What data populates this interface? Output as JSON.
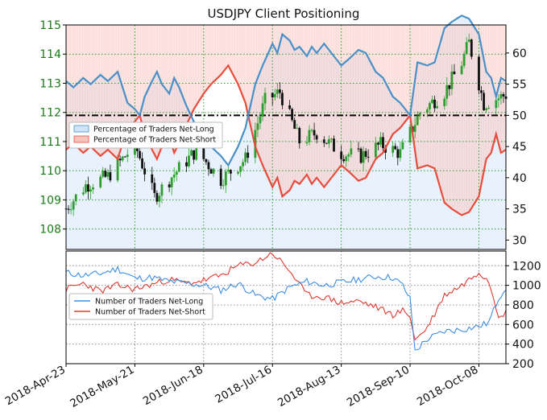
{
  "chart_data": {
    "type": "line",
    "title": "USDJPY Client Positioning",
    "dates": [
      "2018-Apr-23",
      "2018-May-21",
      "2018-Jun-18",
      "2018-Jul-16",
      "2018-Aug-13",
      "2018-Sep-10",
      "2018-Oct-08"
    ],
    "x_range": [
      "2018-04-23",
      "2018-10-19"
    ],
    "top_panel": {
      "price_axis": {
        "side": "left",
        "color": "#1a7a1a",
        "ylim": [
          107.3,
          115.0
        ],
        "ticks": [
          108,
          109,
          110,
          111,
          112,
          113,
          114,
          115
        ]
      },
      "percent_axis": {
        "side": "right",
        "ylim": [
          28.5,
          64.5
        ],
        "ticks": [
          30,
          35,
          40,
          45,
          50,
          55,
          60
        ]
      },
      "reference_line": {
        "value": 50,
        "style": "dash-dot",
        "color": "#000000"
      },
      "legend": {
        "position": "center-left",
        "items": [
          {
            "label": "Percentage of Traders Net-Long",
            "color": "#4a90c8",
            "fill": "#cfe4f7"
          },
          {
            "label": "Percentage of Traders Net-Short",
            "color": "#e74c3c",
            "fill": "#f7c3bd"
          }
        ]
      },
      "net_long_pct": {
        "x": [
          "2018-04-23",
          "2018-04-26",
          "2018-04-30",
          "2018-05-03",
          "2018-05-07",
          "2018-05-10",
          "2018-05-14",
          "2018-05-16",
          "2018-05-18",
          "2018-05-21",
          "2018-05-23",
          "2018-05-25",
          "2018-05-28",
          "2018-05-30",
          "2018-06-01",
          "2018-06-04",
          "2018-06-06",
          "2018-06-08",
          "2018-06-11",
          "2018-06-14",
          "2018-06-18",
          "2018-06-21",
          "2018-06-25",
          "2018-06-28",
          "2018-07-02",
          "2018-07-05",
          "2018-07-09",
          "2018-07-12",
          "2018-07-16",
          "2018-07-18",
          "2018-07-20",
          "2018-07-23",
          "2018-07-25",
          "2018-07-27",
          "2018-07-30",
          "2018-08-01",
          "2018-08-03",
          "2018-08-06",
          "2018-08-09",
          "2018-08-13",
          "2018-08-16",
          "2018-08-20",
          "2018-08-23",
          "2018-08-27",
          "2018-08-30",
          "2018-09-03",
          "2018-09-06",
          "2018-09-10",
          "2018-09-13",
          "2018-09-17",
          "2018-09-20",
          "2018-09-24",
          "2018-09-27",
          "2018-10-01",
          "2018-10-04",
          "2018-10-08",
          "2018-10-11",
          "2018-10-13",
          "2018-10-15",
          "2018-10-17",
          "2018-10-19"
        ],
        "y": [
          55.5,
          54.5,
          56,
          55,
          56.5,
          55.5,
          57,
          54.5,
          52,
          51,
          50,
          53,
          55.5,
          57,
          55,
          53.5,
          56,
          54.5,
          51.5,
          49,
          46.5,
          45,
          43.5,
          42,
          45,
          48,
          55,
          58,
          61.5,
          60,
          63,
          62,
          60.5,
          61,
          59.5,
          61,
          60,
          61.5,
          60,
          58,
          59,
          60.5,
          60,
          57,
          56,
          53,
          52,
          50,
          58.5,
          58,
          58.5,
          64,
          65,
          66,
          65.5,
          63,
          57,
          56,
          53,
          56,
          55.5
        ]
      },
      "net_short_pct": {
        "x": [
          "2018-04-23",
          "2018-04-26",
          "2018-04-30",
          "2018-05-03",
          "2018-05-07",
          "2018-05-10",
          "2018-05-14",
          "2018-05-16",
          "2018-05-18",
          "2018-05-21",
          "2018-05-23",
          "2018-05-25",
          "2018-05-28",
          "2018-05-30",
          "2018-06-01",
          "2018-06-04",
          "2018-06-06",
          "2018-06-08",
          "2018-06-11",
          "2018-06-14",
          "2018-06-18",
          "2018-06-21",
          "2018-06-25",
          "2018-06-28",
          "2018-07-02",
          "2018-07-05",
          "2018-07-09",
          "2018-07-12",
          "2018-07-16",
          "2018-07-18",
          "2018-07-20",
          "2018-07-23",
          "2018-07-25",
          "2018-07-27",
          "2018-07-30",
          "2018-08-01",
          "2018-08-03",
          "2018-08-06",
          "2018-08-09",
          "2018-08-13",
          "2018-08-16",
          "2018-08-20",
          "2018-08-23",
          "2018-08-27",
          "2018-08-30",
          "2018-09-03",
          "2018-09-06",
          "2018-09-10",
          "2018-09-13",
          "2018-09-17",
          "2018-09-20",
          "2018-09-24",
          "2018-09-27",
          "2018-10-01",
          "2018-10-04",
          "2018-10-08",
          "2018-10-11",
          "2018-10-13",
          "2018-10-15",
          "2018-10-17",
          "2018-10-19"
        ],
        "y": [
          44.5,
          45.5,
          44,
          45,
          43.5,
          44.5,
          43,
          45.5,
          48,
          49,
          50,
          47,
          44.5,
          43,
          45,
          46.5,
          44,
          45.5,
          48.5,
          51,
          53.5,
          55,
          56.5,
          58,
          55,
          52,
          45,
          42,
          38.5,
          40,
          37,
          38,
          39.5,
          39,
          40.5,
          39,
          40,
          38.5,
          40,
          42,
          41,
          39.5,
          40,
          43,
          44,
          47,
          48,
          50,
          41.5,
          42,
          41.5,
          36,
          35,
          34,
          34.5,
          37,
          43,
          44,
          47,
          44,
          44.5
        ]
      },
      "price_close_trend": {
        "x": [
          "2018-04-23",
          "2018-05-01",
          "2018-05-10",
          "2018-05-21",
          "2018-05-29",
          "2018-06-05",
          "2018-06-15",
          "2018-06-25",
          "2018-07-05",
          "2018-07-13",
          "2018-07-19",
          "2018-07-27",
          "2018-08-03",
          "2018-08-13",
          "2018-08-21",
          "2018-08-29",
          "2018-09-06",
          "2018-09-14",
          "2018-09-24",
          "2018-10-01",
          "2018-10-04",
          "2018-10-10",
          "2018-10-19"
        ],
        "y": [
          108.7,
          109.5,
          109.8,
          110.9,
          109.1,
          109.8,
          110.7,
          109.7,
          110.4,
          112.4,
          112.7,
          111.0,
          111.3,
          110.6,
          110.5,
          110.9,
          110.6,
          112.0,
          112.7,
          113.7,
          114.4,
          112.3,
          112.6
        ]
      }
    },
    "bottom_panel": {
      "axis": {
        "side": "right",
        "ylim": [
          200,
          1350
        ],
        "ticks": [
          200,
          400,
          600,
          800,
          1000,
          1200
        ]
      },
      "legend": {
        "position": "center-left",
        "items": [
          {
            "label": "Number of Traders Net-Long",
            "color": "#3d8fe6"
          },
          {
            "label": "Number of Traders Net-Short",
            "color": "#e03a2f"
          }
        ]
      },
      "net_long_count": {
        "x": [
          "2018-04-23",
          "2018-04-30",
          "2018-05-07",
          "2018-05-14",
          "2018-05-21",
          "2018-05-28",
          "2018-06-04",
          "2018-06-11",
          "2018-06-18",
          "2018-06-25",
          "2018-07-02",
          "2018-07-09",
          "2018-07-16",
          "2018-07-23",
          "2018-07-30",
          "2018-08-06",
          "2018-08-13",
          "2018-08-20",
          "2018-08-27",
          "2018-09-03",
          "2018-09-07",
          "2018-09-10",
          "2018-09-12",
          "2018-09-17",
          "2018-09-24",
          "2018-10-01",
          "2018-10-08",
          "2018-10-12",
          "2018-10-16",
          "2018-10-19"
        ],
        "y": [
          1130,
          1100,
          1120,
          1170,
          1070,
          1080,
          1040,
          1020,
          1000,
          950,
          1020,
          900,
          860,
          980,
          1040,
          1000,
          1030,
          1060,
          1090,
          1080,
          1000,
          860,
          330,
          450,
          530,
          550,
          580,
          620,
          870,
          980
        ]
      },
      "net_short_count": {
        "x": [
          "2018-04-23",
          "2018-04-30",
          "2018-05-07",
          "2018-05-14",
          "2018-05-21",
          "2018-05-28",
          "2018-06-04",
          "2018-06-11",
          "2018-06-18",
          "2018-06-25",
          "2018-07-02",
          "2018-07-09",
          "2018-07-16",
          "2018-07-23",
          "2018-07-30",
          "2018-08-06",
          "2018-08-13",
          "2018-08-20",
          "2018-08-27",
          "2018-09-03",
          "2018-09-07",
          "2018-09-10",
          "2018-09-12",
          "2018-09-17",
          "2018-09-24",
          "2018-10-01",
          "2018-10-08",
          "2018-10-12",
          "2018-10-16",
          "2018-10-19"
        ],
        "y": [
          960,
          1020,
          940,
          1000,
          960,
          1010,
          1060,
          1020,
          1050,
          1100,
          1200,
          1230,
          1330,
          1150,
          900,
          880,
          820,
          840,
          780,
          700,
          740,
          690,
          440,
          570,
          900,
          1000,
          1140,
          1050,
          700,
          720
        ]
      }
    }
  }
}
